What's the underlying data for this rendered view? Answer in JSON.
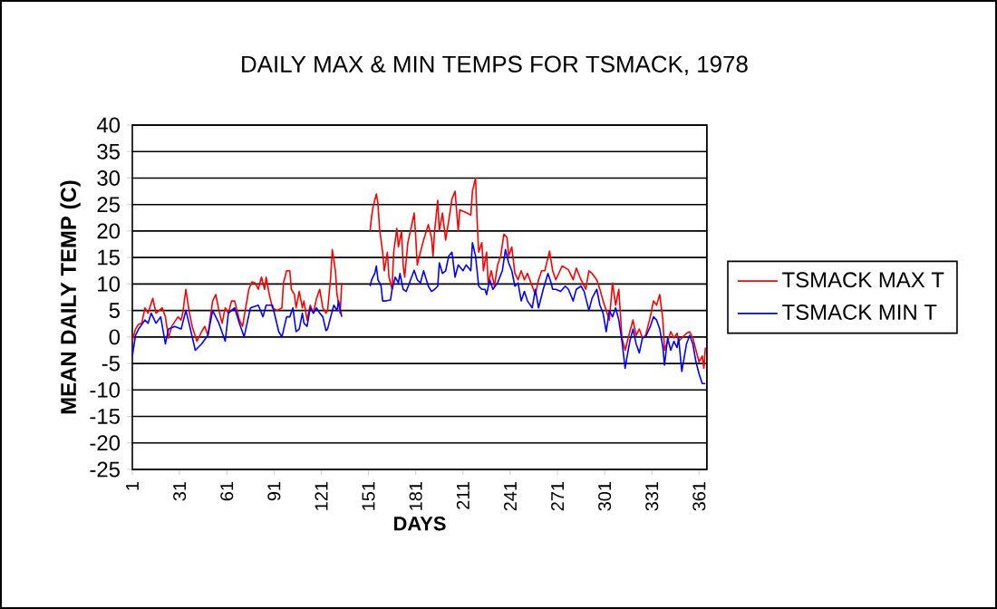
{
  "chart_data": {
    "type": "line",
    "title": "DAILY MAX & MIN TEMPS FOR TSMACK, 1978",
    "xlabel": "DAYS",
    "ylabel": "MEAN DAILY TEMP (C)",
    "xlim": [
      1,
      366
    ],
    "xticks": [
      1,
      31,
      61,
      91,
      121,
      151,
      181,
      211,
      241,
      271,
      301,
      331,
      361
    ],
    "ylim": [
      -25,
      40
    ],
    "yticks": [
      -25,
      -20,
      -15,
      -10,
      -5,
      0,
      5,
      10,
      15,
      20,
      25,
      30,
      35,
      40
    ],
    "grid": "y",
    "legend": "right",
    "line_style": "solid",
    "series": [
      {
        "name": "TSMACK MAX T",
        "color": "#ff0000",
        "x": [
          1,
          3,
          5,
          7,
          9,
          11,
          14,
          16,
          20,
          22,
          24,
          26,
          30,
          32,
          33,
          35,
          37,
          39,
          42,
          45,
          47,
          49,
          52,
          54,
          56,
          58,
          60,
          62,
          64,
          66,
          69,
          71,
          75,
          77,
          79,
          81,
          83,
          85,
          86,
          88,
          90,
          93,
          96,
          97,
          99,
          101,
          102,
          104,
          105,
          107,
          109,
          110,
          112,
          114,
          116,
          118,
          120,
          122,
          124,
          125,
          127,
          128,
          130,
          131,
          133,
          134,
          143,
          152,
          153,
          154,
          156,
          157,
          158,
          160,
          161,
          163,
          164,
          166,
          167,
          169,
          170,
          172,
          173,
          174,
          176,
          178,
          180,
          181,
          182,
          184,
          186,
          189,
          191,
          192,
          193,
          195,
          196,
          198,
          200,
          202,
          204,
          206,
          208,
          209,
          213,
          216,
          217,
          219,
          220,
          221,
          223,
          224,
          226,
          227,
          229,
          231,
          233,
          235,
          237,
          239,
          240,
          242,
          244,
          246,
          248,
          250,
          252,
          255,
          257,
          259,
          261,
          263,
          266,
          268,
          270,
          274,
          278,
          281,
          283,
          286,
          289,
          291,
          293,
          296,
          298,
          300,
          302,
          304,
          306,
          308,
          310,
          312,
          314,
          315,
          317,
          319,
          321,
          323,
          325,
          327,
          330,
          332,
          334,
          336,
          338,
          339,
          341,
          343,
          345,
          347,
          348,
          350,
          353,
          355,
          357,
          359,
          361,
          363,
          364,
          365
        ],
        "values": [
          -0.8,
          1.5,
          2.4,
          2.6,
          5.5,
          4.5,
          7.3,
          4.5,
          5.5,
          3.8,
          -0.2,
          2,
          3.8,
          3.2,
          4.5,
          9,
          5,
          2,
          -0.8,
          1,
          2,
          0.3,
          6.8,
          8,
          5,
          2.6,
          5.5,
          4.5,
          6.8,
          6.8,
          3.2,
          2,
          9,
          10.4,
          10.2,
          9,
          11.3,
          9,
          11.3,
          8,
          5.5,
          5,
          5.5,
          10.2,
          12.5,
          12.5,
          9,
          8,
          5.5,
          8.6,
          5.5,
          6.8,
          3.2,
          6,
          4.5,
          7.3,
          9,
          5.5,
          4.5,
          5,
          11.3,
          16.5,
          12.5,
          8,
          4.5,
          10.2,
          null,
          20,
          22.8,
          24.7,
          27,
          25.2,
          20.5,
          16,
          12.5,
          16,
          11.3,
          9,
          16,
          20.5,
          17,
          20,
          13.6,
          11.3,
          17.8,
          20.5,
          23.4,
          18.8,
          13.6,
          16,
          18.3,
          21.2,
          18.8,
          15.3,
          20,
          25.8,
          20,
          23.4,
          18.3,
          22,
          26,
          27.5,
          20,
          24,
          23.5,
          23,
          27.5,
          30,
          22,
          16,
          17.8,
          12.5,
          16,
          10.2,
          12.5,
          9.6,
          13.6,
          15.3,
          19.4,
          18.8,
          15.3,
          17,
          12,
          10.8,
          12.5,
          10.8,
          12,
          9.6,
          8,
          10.8,
          12.5,
          12.5,
          16.2,
          12.5,
          10.8,
          13.4,
          12.7,
          10.8,
          13,
          10.8,
          9,
          12.5,
          12,
          10.8,
          9,
          6.8,
          5,
          3.2,
          10.2,
          6,
          9,
          -0.2,
          -2.5,
          -1.3,
          1,
          3.2,
          0.3,
          1.5,
          -0.2,
          0.3,
          3.8,
          6.8,
          6,
          8,
          3.2,
          -2.5,
          -0.8,
          1,
          -0.2,
          0.7,
          -0.8,
          -0.2,
          0.7,
          1,
          -0.2,
          -2.5,
          -4.7,
          -3.6,
          -5.9,
          -2
        ]
      },
      {
        "name": "TSMACK MIN T",
        "color": "#0000ff",
        "x": [
          1,
          3,
          5,
          9,
          11,
          13,
          16,
          19,
          22,
          24,
          28,
          32,
          35,
          37,
          41,
          45,
          49,
          52,
          56,
          60,
          62,
          66,
          69,
          72,
          76,
          81,
          84,
          86,
          90,
          94,
          96,
          99,
          101,
          103,
          105,
          107,
          109,
          110,
          112,
          114,
          116,
          118,
          120,
          122,
          124,
          125,
          127,
          129,
          131,
          132,
          134,
          143,
          152,
          153,
          155,
          156,
          157,
          159,
          160,
          162,
          165,
          166,
          168,
          170,
          171,
          173,
          175,
          177,
          180,
          182,
          184,
          186,
          189,
          191,
          193,
          195,
          196,
          198,
          200,
          202,
          204,
          206,
          208,
          211,
          213,
          216,
          217,
          219,
          221,
          223,
          225,
          226,
          228,
          230,
          233,
          236,
          238,
          240,
          242,
          244,
          246,
          248,
          250,
          252,
          255,
          257,
          259,
          262,
          265,
          267,
          268,
          270,
          273,
          276,
          278,
          281,
          283,
          286,
          288,
          291,
          293,
          296,
          298,
          300,
          302,
          304,
          306,
          308,
          310,
          312,
          314,
          315,
          317,
          319,
          321,
          323,
          325,
          327,
          330,
          332,
          334,
          336,
          338,
          339,
          341,
          343,
          345,
          347,
          348,
          350,
          353,
          355,
          357,
          359,
          361,
          363,
          365
        ],
        "values": [
          -3.6,
          0.3,
          1.5,
          3.2,
          2.6,
          4.5,
          2.6,
          3.8,
          -1.3,
          1.5,
          2,
          1.5,
          5,
          2.6,
          -2.5,
          -1.3,
          0.3,
          5,
          2.6,
          -0.8,
          4.5,
          5.5,
          2.6,
          0,
          5.5,
          6,
          3.8,
          6,
          6,
          1,
          0,
          3.8,
          3.8,
          5.5,
          1,
          1.5,
          4.5,
          2.6,
          2,
          5.5,
          4.5,
          5.5,
          4.5,
          3.8,
          1.2,
          1.5,
          3.8,
          6,
          5,
          6.8,
          3.8,
          null,
          9.6,
          10.8,
          12,
          13.4,
          10.8,
          9.6,
          6.8,
          6.8,
          7,
          9,
          11.3,
          10.2,
          12,
          9,
          8.6,
          10.2,
          12.6,
          10.8,
          10.2,
          12.5,
          9.6,
          8.6,
          9,
          9.6,
          14,
          12,
          12.5,
          15.3,
          16,
          11.3,
          13.6,
          12.5,
          13.6,
          12.5,
          17.8,
          15.3,
          9.6,
          9,
          9,
          8,
          10.8,
          9,
          10.2,
          12.5,
          16.5,
          14,
          12.5,
          9.6,
          10.2,
          6.8,
          8.6,
          6.8,
          5.5,
          9,
          5.5,
          9,
          12,
          10.2,
          9,
          9,
          8.6,
          9.6,
          9,
          6.8,
          9,
          9.6,
          8.6,
          5,
          7.3,
          9,
          6,
          4.5,
          1,
          5,
          3.8,
          5.5,
          3.2,
          -0.8,
          -5.9,
          -4.1,
          -0.8,
          1.5,
          -1.3,
          -3,
          -0.2,
          0,
          2,
          3.8,
          3.2,
          1.5,
          -2,
          -5.3,
          -0.2,
          -2.5,
          -0.8,
          -2,
          -0.2,
          -6.5,
          -1.3,
          0.3,
          -1.3,
          -4.7,
          -7,
          -8.8,
          -8.8
        ]
      }
    ]
  }
}
